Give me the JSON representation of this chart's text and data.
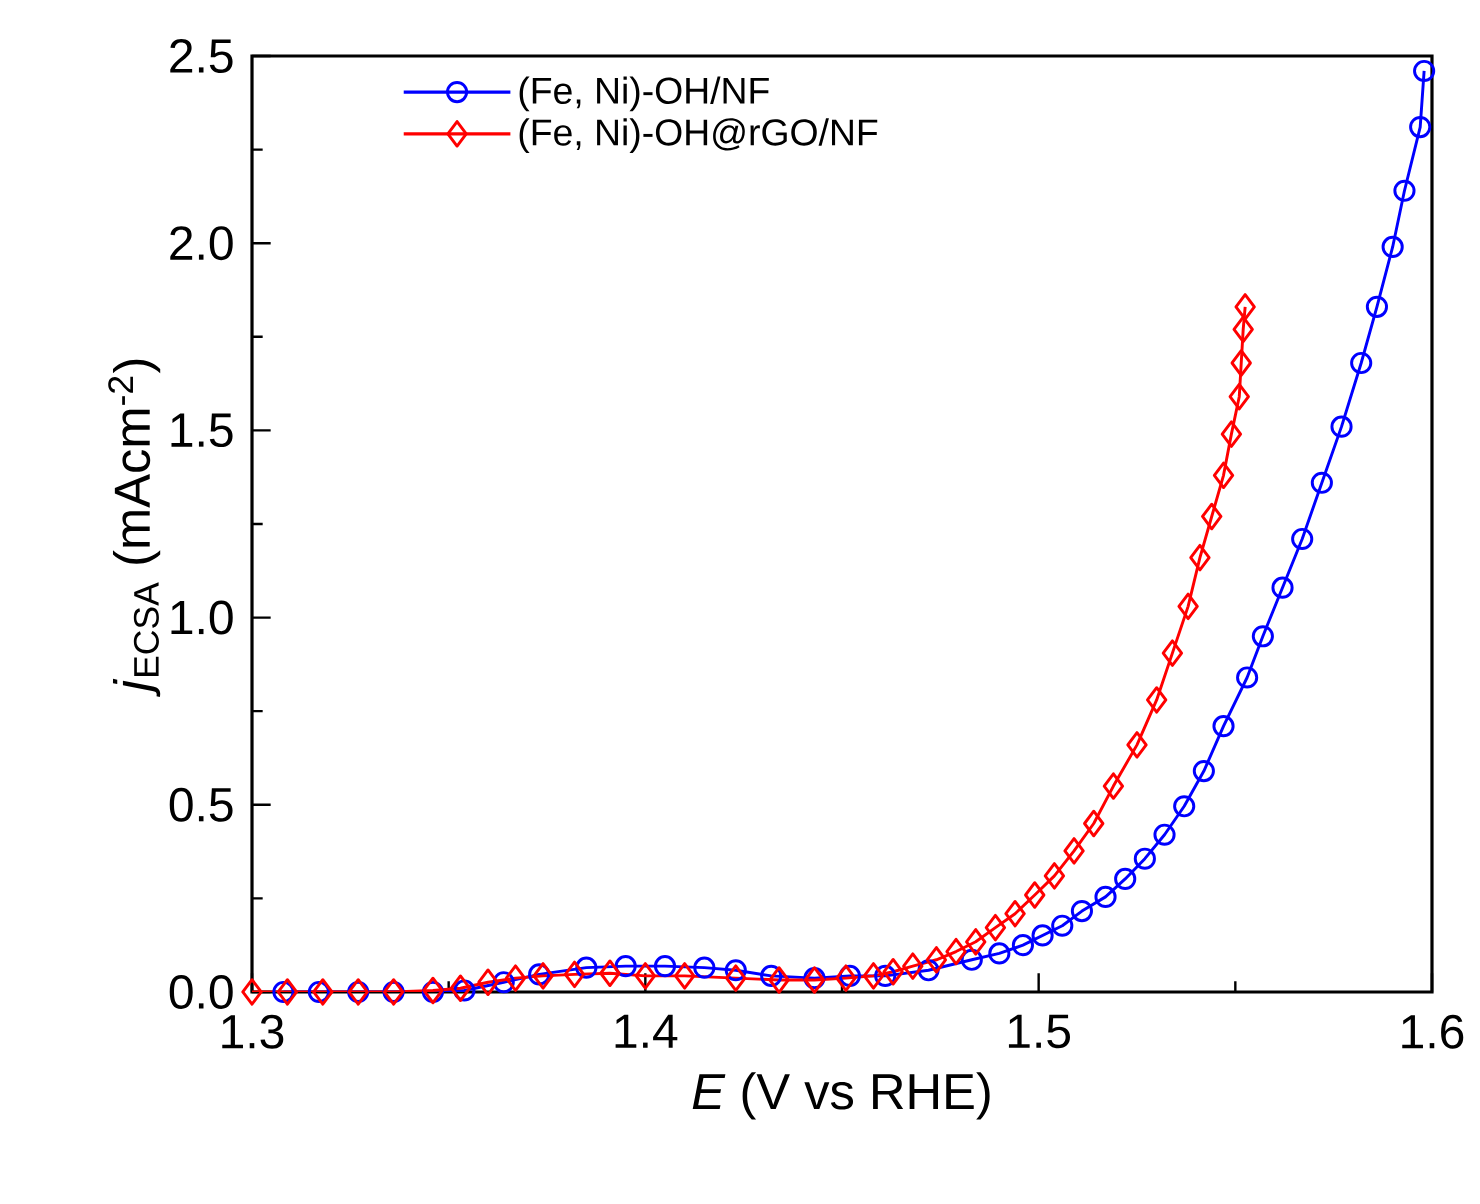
{
  "chart_data": {
    "type": "line",
    "xlabel": "*E* (V vs RHE)",
    "ylabel": "*j*$_{ECSA}$ (mAcm$^{-2}$)",
    "xlim": [
      1.3,
      1.6
    ],
    "ylim": [
      0,
      2.5
    ],
    "xticks": [
      1.3,
      1.4,
      1.5,
      1.6
    ],
    "yticks": [
      {
        "value": 0,
        "label": "0.0"
      },
      0.5,
      {
        "value": 1,
        "label": "1.0"
      },
      1.5,
      {
        "value": 2,
        "label": "2.0"
      },
      2.5
    ],
    "grid": false,
    "legend": "top left",
    "line_style": "solid",
    "series": [
      {
        "name": "(Fe, Ni)-OH/NF",
        "color": "#0000ff",
        "marker": "circle",
        "x": [
          1.308,
          1.317,
          1.327,
          1.336,
          1.346,
          1.354,
          1.364,
          1.373,
          1.385,
          1.395,
          1.405,
          1.415,
          1.423,
          1.432,
          1.443,
          1.452,
          1.461,
          1.472,
          1.483,
          1.49,
          1.496,
          1.501,
          1.506,
          1.511,
          1.517,
          1.522,
          1.527,
          1.532,
          1.537,
          1.542,
          1.547,
          1.553,
          1.557,
          1.562,
          1.567,
          1.572,
          1.577,
          1.582,
          1.586,
          1.59,
          1.593,
          1.597,
          1.598
        ],
        "values": [
          0,
          0,
          0,
          0,
          0,
          0.004,
          0.026,
          0.047,
          0.065,
          0.069,
          0.069,
          0.065,
          0.058,
          0.043,
          0.037,
          0.043,
          0.043,
          0.058,
          0.086,
          0.103,
          0.125,
          0.151,
          0.177,
          0.216,
          0.254,
          0.302,
          0.356,
          0.42,
          0.496,
          0.59,
          0.71,
          0.84,
          0.95,
          1.08,
          1.21,
          1.36,
          1.51,
          1.68,
          1.83,
          1.99,
          2.14,
          2.31,
          2.46
        ]
      },
      {
        "name": "(Fe, Ni)-OH@rGO/NF",
        "color": "#ff0000",
        "marker": "diamond",
        "x": [
          1.3,
          1.309,
          1.318,
          1.327,
          1.336,
          1.346,
          1.353,
          1.36,
          1.367,
          1.374,
          1.382,
          1.391,
          1.4,
          1.41,
          1.423,
          1.434,
          1.443,
          1.451,
          1.458,
          1.463,
          1.468,
          1.474,
          1.479,
          1.484,
          1.489,
          1.494,
          1.499,
          1.504,
          1.509,
          1.514,
          1.519,
          1.525,
          1.53,
          1.534,
          1.538,
          1.541,
          1.544,
          1.547,
          1.549,
          1.551,
          1.5515,
          1.552,
          1.5525
        ],
        "values": [
          0,
          0,
          0,
          0,
          0,
          0.004,
          0.01,
          0.026,
          0.037,
          0.043,
          0.047,
          0.05,
          0.043,
          0.043,
          0.037,
          0.032,
          0.032,
          0.037,
          0.043,
          0.054,
          0.069,
          0.086,
          0.108,
          0.134,
          0.172,
          0.209,
          0.259,
          0.31,
          0.377,
          0.45,
          0.55,
          0.66,
          0.78,
          0.905,
          1.03,
          1.16,
          1.27,
          1.38,
          1.49,
          1.59,
          1.68,
          1.77,
          1.83
        ]
      }
    ]
  }
}
